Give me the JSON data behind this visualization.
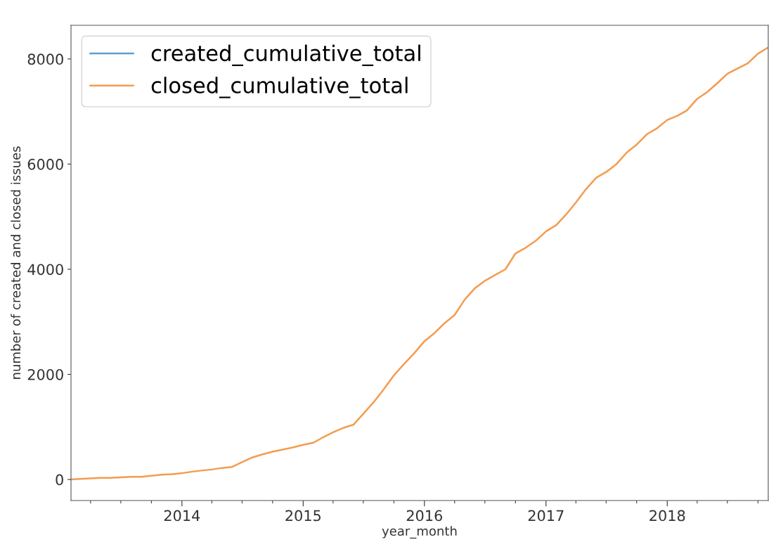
{
  "chart_data": {
    "type": "line",
    "xlabel": "year_month",
    "ylabel": "number of created and closed issues",
    "x": [
      "2013-02",
      "2013-03",
      "2013-04",
      "2013-05",
      "2013-06",
      "2013-07",
      "2013-08",
      "2013-09",
      "2013-10",
      "2013-11",
      "2013-12",
      "2014-01",
      "2014-02",
      "2014-03",
      "2014-04",
      "2014-05",
      "2014-06",
      "2014-07",
      "2014-08",
      "2014-09",
      "2014-10",
      "2014-11",
      "2014-12",
      "2015-01",
      "2015-02",
      "2015-03",
      "2015-04",
      "2015-05",
      "2015-06",
      "2015-07",
      "2015-08",
      "2015-09",
      "2015-10",
      "2015-11",
      "2015-12",
      "2016-01",
      "2016-02",
      "2016-03",
      "2016-04",
      "2016-05",
      "2016-06",
      "2016-07",
      "2016-08",
      "2016-09",
      "2016-10",
      "2016-11",
      "2016-12",
      "2017-01",
      "2017-02",
      "2017-03",
      "2017-04",
      "2017-05",
      "2017-06",
      "2017-07",
      "2017-08",
      "2017-09",
      "2017-10",
      "2017-11",
      "2017-12",
      "2018-01",
      "2018-02",
      "2018-03",
      "2018-04",
      "2018-05",
      "2018-06",
      "2018-07",
      "2018-08",
      "2018-09",
      "2018-10",
      "2018-11"
    ],
    "series": [
      {
        "name": "created_cumulative_total",
        "color": "#5f9ed1",
        "values": [
          null,
          null,
          null,
          null,
          null,
          null,
          null,
          null,
          null,
          null,
          null,
          null,
          null,
          null,
          null,
          null,
          null,
          null,
          null,
          null,
          null,
          null,
          null,
          null,
          null,
          null,
          null,
          null,
          null,
          null,
          null,
          null,
          null,
          null,
          null,
          null,
          null,
          null,
          null,
          null,
          null,
          null,
          null,
          null,
          null,
          null,
          null,
          null,
          null,
          null,
          null,
          null,
          null,
          null,
          null,
          null,
          null,
          null,
          null,
          null,
          null,
          null,
          null,
          null,
          null,
          null,
          null,
          null,
          null,
          null
        ]
      },
      {
        "name": "closed_cumulative_total",
        "color": "#f39c4f",
        "values": [
          0,
          10,
          20,
          30,
          30,
          40,
          50,
          50,
          70,
          90,
          100,
          120,
          150,
          170,
          190,
          220,
          240,
          330,
          420,
          480,
          530,
          570,
          610,
          660,
          700,
          800,
          900,
          980,
          1040,
          1250,
          1470,
          1720,
          1980,
          2200,
          2400,
          2630,
          2790,
          2970,
          3130,
          3420,
          3640,
          3780,
          3890,
          4000,
          4300,
          4410,
          4540,
          4720,
          4840,
          5030,
          5270,
          5520,
          5740,
          5850,
          6000,
          6220,
          6370,
          6570,
          6680,
          6840,
          6920,
          7020,
          7240,
          7370,
          7540,
          7720,
          7820,
          7920,
          8100,
          8220
        ]
      }
    ],
    "xlim": [
      "2013-02",
      "2018-11"
    ],
    "xticks": [
      {
        "value": "2014-01",
        "label": "2014"
      },
      {
        "value": "2015-01",
        "label": "2015"
      },
      {
        "value": "2016-01",
        "label": "2016"
      },
      {
        "value": "2017-01",
        "label": "2017"
      },
      {
        "value": "2018-01",
        "label": "2018"
      }
    ],
    "ylim": [
      -400,
      8640
    ],
    "yticks": [
      0,
      2000,
      4000,
      6000,
      8000
    ],
    "grid": false,
    "legend": "top left",
    "marker": "none",
    "line_style": "solid"
  }
}
